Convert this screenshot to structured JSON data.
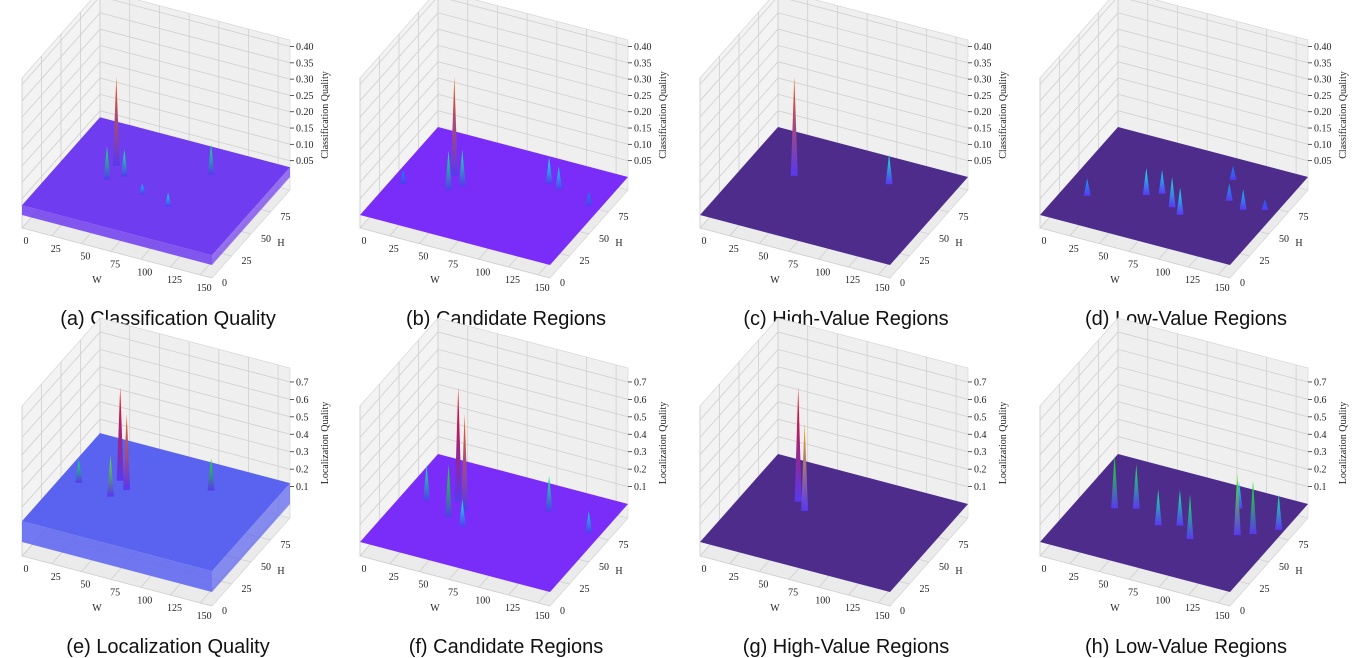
{
  "chart_data": [
    {
      "type": "surface",
      "caption": "(a) Classification Quality",
      "xlabel": "W",
      "ylabel": "H",
      "zlabel": "Classification Quality",
      "xlim": [
        0,
        160
      ],
      "ylim": [
        0,
        100
      ],
      "zlim": [
        -0.04,
        0.42
      ],
      "xticks": [
        0,
        25,
        50,
        75,
        100,
        125,
        150
      ],
      "yticks": [
        0,
        25,
        50,
        75
      ],
      "zticks": [
        0.05,
        {
          "value": 0.1,
          "label": "0.10"
        },
        0.15,
        {
          "value": 0.2,
          "label": "0.20"
        },
        0.25,
        {
          "value": 0.3,
          "label": "0.30"
        },
        0.35,
        {
          "value": 0.4,
          "label": "0.40"
        }
      ],
      "surface_level": 0.03,
      "surface_color": "#6f3cf0",
      "peaks": [
        {
          "w": 40,
          "h": 60,
          "z": 0.3
        },
        {
          "w": 42,
          "h": 45,
          "z": 0.13
        },
        {
          "w": 52,
          "h": 52,
          "z": 0.11
        },
        {
          "w": 110,
          "h": 75,
          "z": 0.12
        },
        {
          "w": 100,
          "h": 35,
          "z": 0.07
        },
        {
          "w": 75,
          "h": 40,
          "z": 0.06
        }
      ]
    },
    {
      "type": "surface",
      "caption": "(b) Candidate Regions",
      "xlabel": "W",
      "ylabel": "H",
      "zlabel": "Classification Quality",
      "xlim": [
        0,
        160
      ],
      "ylim": [
        0,
        100
      ],
      "zlim": [
        -0.04,
        0.42
      ],
      "xticks": [
        0,
        25,
        50,
        75,
        100,
        125,
        150
      ],
      "yticks": [
        0,
        25,
        50,
        75
      ],
      "zticks": [
        0.05,
        {
          "value": 0.1,
          "label": "0.10"
        },
        0.15,
        {
          "value": 0.2,
          "label": "0.20"
        },
        0.25,
        {
          "value": 0.3,
          "label": "0.30"
        },
        0.35,
        {
          "value": 0.4,
          "label": "0.40"
        }
      ],
      "surface_level": 0,
      "surface_color": "#7a2cf8",
      "peaks": [
        {
          "w": 40,
          "h": 60,
          "z": 0.3
        },
        {
          "w": 45,
          "h": 45,
          "z": 0.12
        },
        {
          "w": 52,
          "h": 52,
          "z": 0.11
        },
        {
          "w": 110,
          "h": 75,
          "z": 0.08
        },
        {
          "w": 120,
          "h": 72,
          "z": 0.07
        },
        {
          "w": 10,
          "h": 40,
          "z": 0.04
        },
        {
          "w": 150,
          "h": 65,
          "z": 0.04
        }
      ]
    },
    {
      "type": "surface",
      "caption": "(c) High-Value Regions",
      "xlabel": "W",
      "ylabel": "H",
      "zlabel": "Classification Quality",
      "xlim": [
        0,
        160
      ],
      "ylim": [
        0,
        100
      ],
      "zlim": [
        -0.04,
        0.42
      ],
      "xticks": [
        0,
        25,
        50,
        75,
        100,
        125,
        150
      ],
      "yticks": [
        0,
        25,
        50,
        75
      ],
      "zticks": [
        0.05,
        {
          "value": 0.1,
          "label": "0.10"
        },
        0.15,
        {
          "value": 0.2,
          "label": "0.20"
        },
        0.25,
        {
          "value": 0.3,
          "label": "0.30"
        },
        0.35,
        {
          "value": 0.4,
          "label": "0.40"
        }
      ],
      "surface_level": 0,
      "surface_color": "#4e2c8c",
      "peaks": [
        {
          "w": 40,
          "h": 60,
          "z": 0.3
        },
        {
          "w": 110,
          "h": 75,
          "z": 0.09
        }
      ]
    },
    {
      "type": "surface",
      "caption": "(d) Low-Value Regions",
      "xlabel": "W",
      "ylabel": "H",
      "zlabel": "Classification Quality",
      "xlim": [
        0,
        160
      ],
      "ylim": [
        0,
        100
      ],
      "zlim": [
        -0.04,
        0.42
      ],
      "xticks": [
        0,
        25,
        50,
        75,
        100,
        125,
        150
      ],
      "yticks": [
        0,
        25,
        50,
        75
      ],
      "zticks": [
        0.05,
        {
          "value": 0.1,
          "label": "0.10"
        },
        0.15,
        {
          "value": 0.2,
          "label": "0.20"
        },
        0.25,
        {
          "value": 0.3,
          "label": "0.30"
        },
        0.35,
        {
          "value": 0.4,
          "label": "0.40"
        }
      ],
      "surface_level": 0,
      "surface_color": "#4e2c8c",
      "peaks": [
        {
          "w": 110,
          "h": 80,
          "z": 0.04
        },
        {
          "w": 150,
          "h": 60,
          "z": 0.03
        },
        {
          "w": 120,
          "h": 60,
          "z": 0.05
        },
        {
          "w": 135,
          "h": 55,
          "z": 0.06
        },
        {
          "w": 70,
          "h": 50,
          "z": 0.07
        },
        {
          "w": 60,
          "h": 45,
          "z": 0.08
        },
        {
          "w": 85,
          "h": 40,
          "z": 0.09
        },
        {
          "w": 95,
          "h": 35,
          "z": 0.08
        },
        {
          "w": 20,
          "h": 30,
          "z": 0.05
        }
      ]
    },
    {
      "type": "surface",
      "caption": "(e) Localization Quality",
      "xlabel": "W",
      "ylabel": "H",
      "zlabel": "Localization Quality",
      "xlim": [
        0,
        160
      ],
      "ylim": [
        0,
        100
      ],
      "zlim": [
        -0.08,
        0.78
      ],
      "xticks": [
        0,
        25,
        50,
        75,
        100,
        125,
        150
      ],
      "yticks": [
        0,
        25,
        50,
        75
      ],
      "zticks": [
        0.1,
        0.2,
        0.3,
        0.4,
        0.5,
        0.6,
        0.7
      ],
      "surface_level": 0.12,
      "surface_color": "#5a62f0",
      "peaks": [
        {
          "w": 110,
          "h": 75,
          "z": 0.3
        },
        {
          "w": 42,
          "h": 62,
          "z": 0.65
        },
        {
          "w": 52,
          "h": 55,
          "z": 0.55
        },
        {
          "w": 15,
          "h": 50,
          "z": 0.25
        },
        {
          "w": 45,
          "h": 45,
          "z": 0.35
        }
      ]
    },
    {
      "type": "surface",
      "caption": "(f) Candidate Regions",
      "xlabel": "W",
      "ylabel": "H",
      "zlabel": "Localization Quality",
      "xlim": [
        0,
        160
      ],
      "ylim": [
        0,
        100
      ],
      "zlim": [
        -0.08,
        0.78
      ],
      "xticks": [
        0,
        25,
        50,
        75,
        100,
        125,
        150
      ],
      "yticks": [
        0,
        25,
        50,
        75
      ],
      "zticks": [
        0.1,
        0.2,
        0.3,
        0.4,
        0.5,
        0.6,
        0.7
      ],
      "surface_level": 0,
      "surface_color": "#7a2cf8",
      "peaks": [
        {
          "w": 110,
          "h": 75,
          "z": 0.2
        },
        {
          "w": 150,
          "h": 65,
          "z": 0.12
        },
        {
          "w": 42,
          "h": 62,
          "z": 0.65
        },
        {
          "w": 52,
          "h": 55,
          "z": 0.55
        },
        {
          "w": 20,
          "h": 55,
          "z": 0.2
        },
        {
          "w": 45,
          "h": 45,
          "z": 0.3
        },
        {
          "w": 60,
          "h": 40,
          "z": 0.15
        }
      ]
    },
    {
      "type": "surface",
      "caption": "(g) High-Value Regions",
      "xlabel": "W",
      "ylabel": "H",
      "zlabel": "Localization Quality",
      "xlim": [
        0,
        160
      ],
      "ylim": [
        0,
        100
      ],
      "zlim": [
        -0.08,
        0.78
      ],
      "xticks": [
        0,
        25,
        50,
        75,
        100,
        125,
        150
      ],
      "yticks": [
        0,
        25,
        50,
        75
      ],
      "zticks": [
        0.1,
        0.2,
        0.3,
        0.4,
        0.5,
        0.6,
        0.7
      ],
      "surface_level": 0,
      "surface_color": "#4e2c8c",
      "peaks": [
        {
          "w": 42,
          "h": 62,
          "z": 0.65
        },
        {
          "w": 52,
          "h": 55,
          "z": 0.5
        }
      ]
    },
    {
      "type": "surface",
      "caption": "(h) Low-Value Regions",
      "xlabel": "W",
      "ylabel": "H",
      "zlabel": "Localization Quality",
      "xlim": [
        0,
        160
      ],
      "ylim": [
        0,
        100
      ],
      "zlim": [
        -0.08,
        0.78
      ],
      "xticks": [
        0,
        25,
        50,
        75,
        100,
        125,
        150
      ],
      "yticks": [
        0,
        25,
        50,
        75
      ],
      "zticks": [
        0.1,
        0.2,
        0.3,
        0.4,
        0.5,
        0.6,
        0.7
      ],
      "surface_level": 0,
      "surface_color": "#4e2c8c",
      "peaks": [
        {
          "w": 115,
          "h": 80,
          "z": 0.15
        },
        {
          "w": 155,
          "h": 70,
          "z": 0.2
        },
        {
          "w": 140,
          "h": 60,
          "z": 0.3
        },
        {
          "w": 130,
          "h": 55,
          "z": 0.35
        },
        {
          "w": 45,
          "h": 55,
          "z": 0.25
        },
        {
          "w": 30,
          "h": 50,
          "z": 0.3
        },
        {
          "w": 85,
          "h": 50,
          "z": 0.2
        },
        {
          "w": 70,
          "h": 45,
          "z": 0.2
        },
        {
          "w": 100,
          "h": 40,
          "z": 0.25
        }
      ]
    }
  ]
}
